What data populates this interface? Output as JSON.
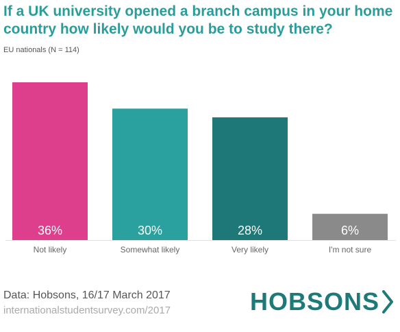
{
  "chart_data": {
    "type": "bar",
    "title": "If a UK university opened a branch campus in your home country how likely would you be to study there?",
    "subtitle": "EU nationals (N = 114)",
    "categories": [
      "Not likely",
      "Somewhat likely",
      "Very likely",
      "I'm not sure"
    ],
    "values": [
      36,
      30,
      28,
      6
    ],
    "value_labels": [
      "36%",
      "30%",
      "28%",
      "6%"
    ],
    "colors": [
      "#dd3f8c",
      "#2aa19f",
      "#1d7877",
      "#8a8a8a"
    ],
    "ylim": [
      0,
      36
    ],
    "grid": false,
    "legend": "none"
  },
  "footer": {
    "source": "Data: Hobsons, 16/17 March 2017",
    "url": "internationalstudentsurvey.com/2017"
  },
  "logo": {
    "text": "HOBSONS",
    "icon": "chevron-right-icon",
    "color": "#1d7a78"
  }
}
